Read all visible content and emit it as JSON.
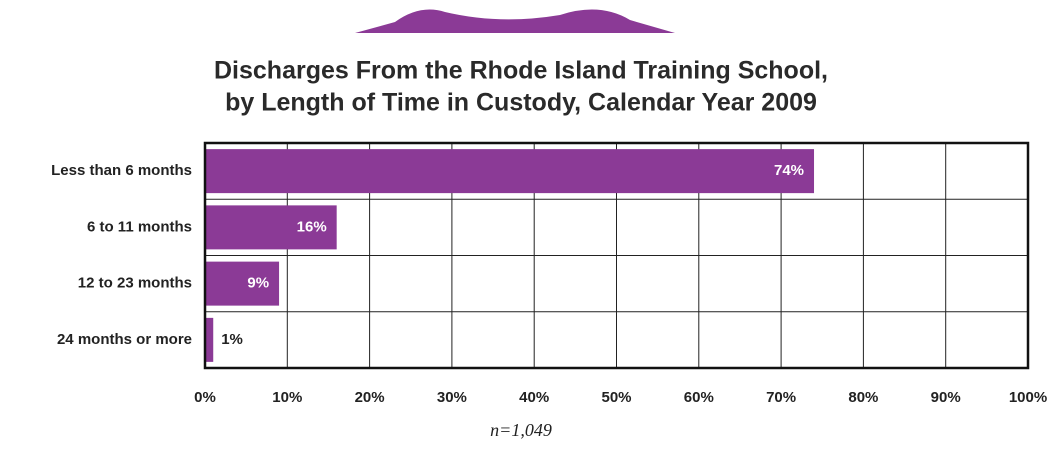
{
  "chart_data": {
    "type": "bar",
    "orientation": "horizontal",
    "title": [
      "Discharges From the Rhode Island Training School,",
      "by Length of Time in Custody, Calendar Year 2009"
    ],
    "categories": [
      "Less than 6 months",
      "6 to 11 months",
      "12 to 23 months",
      "24 months or more"
    ],
    "values": [
      74,
      16,
      9,
      1
    ],
    "value_labels": [
      "74%",
      "16%",
      "9%",
      "1%"
    ],
    "color": "#8b3a96",
    "xlim": [
      0,
      100
    ],
    "xticks": [
      {
        "value": 0,
        "label": "0%"
      },
      {
        "value": 10,
        "label": "10%"
      },
      {
        "value": 20,
        "label": "20%"
      },
      {
        "value": 30,
        "label": "30%"
      },
      {
        "value": 40,
        "label": "40%"
      },
      {
        "value": 50,
        "label": "50%"
      },
      {
        "value": 60,
        "label": "60%"
      },
      {
        "value": 70,
        "label": "70%"
      },
      {
        "value": 80,
        "label": "80%"
      },
      {
        "value": 90,
        "label": "90%"
      },
      {
        "value": 100,
        "label": "100%"
      }
    ],
    "grid": true,
    "note": "n=1,049"
  }
}
